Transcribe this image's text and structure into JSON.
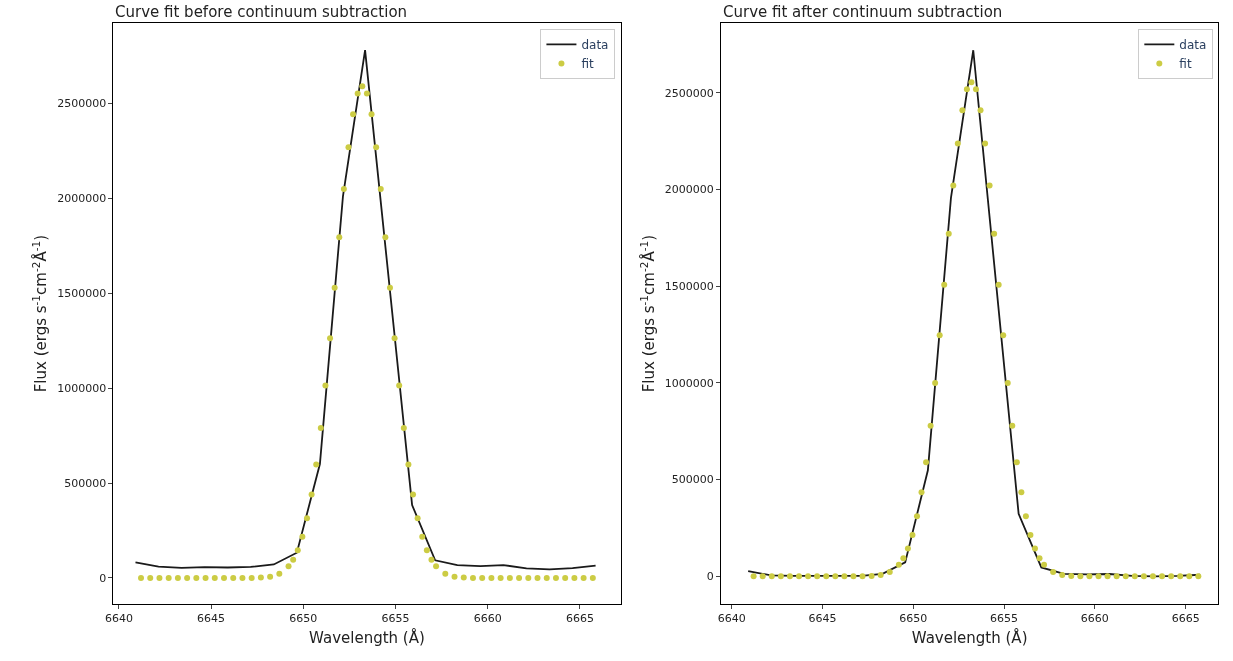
{
  "chart_data": [
    {
      "type": "line",
      "title": "Curve fit before continuum subtraction",
      "xlabel": "Wavelength (Å)",
      "ylabel": "Flux (ergs s$^{-1}$cm$^{-2}$Å$^{-1}$)",
      "xlim": [
        6639.7,
        6667.2
      ],
      "xticks": [
        6640,
        6645,
        6650,
        6655,
        6660,
        6665
      ],
      "ylim": [
        -138000,
        2922000
      ],
      "yticks": [
        0,
        500000,
        1000000,
        1500000,
        2000000,
        2500000
      ],
      "legend": "top right",
      "series": [
        {
          "name": "data",
          "color": "#1a1a1a",
          "line_style": "solid",
          "x": [
            6640.9,
            6642.15,
            6643.4,
            6644.65,
            6645.9,
            6647.15,
            6648.4,
            6649.65,
            6650.9,
            6652.15,
            6653.35,
            6655.9,
            6657.15,
            6658.35,
            6659.6,
            6660.85,
            6662.1,
            6663.35,
            6664.6,
            6665.85
          ],
          "values": [
            82000,
            60000,
            53000,
            57000,
            55000,
            58000,
            71000,
            133000,
            600000,
            2010000,
            2780000,
            384000,
            93000,
            67000,
            62000,
            68000,
            50000,
            45000,
            52000,
            65000
          ]
        },
        {
          "name": "fit",
          "type": "scatter",
          "marker": "circle",
          "color": "#cccc44",
          "x": [
            6641.2,
            6641.7,
            6642.2,
            6642.7,
            6643.2,
            6643.7,
            6644.2,
            6644.7,
            6645.2,
            6645.7,
            6646.2,
            6646.7,
            6647.2,
            6647.7,
            6648.2,
            6648.7,
            6649.2,
            6649.45,
            6649.7,
            6649.95,
            6650.2,
            6650.45,
            6650.7,
            6650.95,
            6651.2,
            6651.45,
            6651.7,
            6651.95,
            6652.2,
            6652.45,
            6652.7,
            6652.95,
            6653.2,
            6653.45,
            6653.7,
            6653.95,
            6654.2,
            6654.45,
            6654.7,
            6654.95,
            6655.2,
            6655.45,
            6655.7,
            6655.95,
            6656.2,
            6656.45,
            6656.7,
            6656.95,
            6657.2,
            6657.7,
            6658.2,
            6658.7,
            6659.2,
            6659.7,
            6660.2,
            6660.7,
            6661.2,
            6661.7,
            6662.2,
            6662.7,
            6663.2,
            6663.7,
            6664.2,
            6664.7,
            6665.2,
            6665.7
          ],
          "values": [
            0,
            0,
            0,
            0,
            0,
            0,
            0,
            0,
            0,
            0,
            0,
            0,
            0,
            2000,
            7000,
            22000,
            61000,
            96000,
            146000,
            217000,
            314000,
            440000,
            598000,
            790000,
            1014000,
            1263000,
            1528000,
            1795000,
            2048000,
            2269000,
            2442000,
            2552000,
            2590000,
            2552000,
            2442000,
            2269000,
            2048000,
            1795000,
            1528000,
            1263000,
            1014000,
            790000,
            598000,
            440000,
            314000,
            217000,
            146000,
            96000,
            61000,
            22000,
            7000,
            2000,
            0,
            0,
            0,
            0,
            0,
            0,
            0,
            0,
            0,
            0,
            0,
            0,
            0,
            0
          ]
        }
      ]
    },
    {
      "type": "line",
      "title": "Curve fit after continuum subtraction",
      "xlabel": "Wavelength (Å)",
      "ylabel": "Flux (ergs s$^{-1}$cm$^{-2}$Å$^{-1}$)",
      "xlim": [
        6639.4,
        6666.8
      ],
      "xticks": [
        6640,
        6645,
        6650,
        6655,
        6660,
        6665
      ],
      "ylim": [
        -144000,
        2860000
      ],
      "yticks": [
        0,
        500000,
        1000000,
        1500000,
        2000000,
        2500000
      ],
      "legend": "top right",
      "series": [
        {
          "name": "data",
          "color": "#1a1a1a",
          "line_style": "solid",
          "x": [
            6640.9,
            6642.15,
            6643.4,
            6644.65,
            6645.9,
            6647.15,
            6648.3,
            6649.55,
            6650.8,
            6652.07,
            6653.3,
            6655.8,
            6657.05,
            6658.3,
            6659.55,
            6660.8,
            6662.05,
            6663.3,
            6664.55,
            6665.8
          ],
          "values": [
            27000,
            5000,
            2000,
            2000,
            2000,
            2000,
            13000,
            72000,
            548000,
            1955000,
            2720000,
            323000,
            46000,
            13000,
            10000,
            12000,
            2000,
            0,
            2000,
            8000
          ]
        },
        {
          "name": "fit",
          "type": "scatter",
          "marker": "circle",
          "color": "#cccc44",
          "x": [
            6641.2,
            6641.7,
            6642.2,
            6642.7,
            6643.2,
            6643.7,
            6644.2,
            6644.7,
            6645.2,
            6645.7,
            6646.2,
            6646.7,
            6647.2,
            6647.7,
            6648.2,
            6648.7,
            6649.2,
            6649.45,
            6649.7,
            6649.95,
            6650.2,
            6650.45,
            6650.7,
            6650.95,
            6651.2,
            6651.45,
            6651.7,
            6651.95,
            6652.2,
            6652.45,
            6652.7,
            6652.95,
            6653.2,
            6653.45,
            6653.7,
            6653.95,
            6654.2,
            6654.45,
            6654.7,
            6654.95,
            6655.2,
            6655.45,
            6655.7,
            6655.95,
            6656.2,
            6656.45,
            6656.7,
            6656.95,
            6657.2,
            6657.7,
            6658.2,
            6658.7,
            6659.2,
            6659.7,
            6660.2,
            6660.7,
            6661.2,
            6661.7,
            6662.2,
            6662.7,
            6663.2,
            6663.7,
            6664.2,
            6664.7,
            6665.2,
            6665.7
          ],
          "values": [
            0,
            0,
            0,
            0,
            0,
            0,
            0,
            0,
            0,
            0,
            0,
            0,
            0,
            2000,
            7000,
            22000,
            60000,
            94000,
            144000,
            214000,
            310000,
            434000,
            590000,
            779000,
            1000000,
            1246000,
            1507000,
            1771000,
            2020000,
            2238000,
            2409000,
            2518000,
            2555000,
            2518000,
            2409000,
            2238000,
            2020000,
            1771000,
            1507000,
            1246000,
            1000000,
            779000,
            590000,
            434000,
            310000,
            214000,
            144000,
            94000,
            60000,
            22000,
            7000,
            2000,
            0,
            0,
            0,
            0,
            0,
            0,
            0,
            0,
            0,
            0,
            0,
            0,
            0,
            0
          ]
        }
      ]
    }
  ]
}
